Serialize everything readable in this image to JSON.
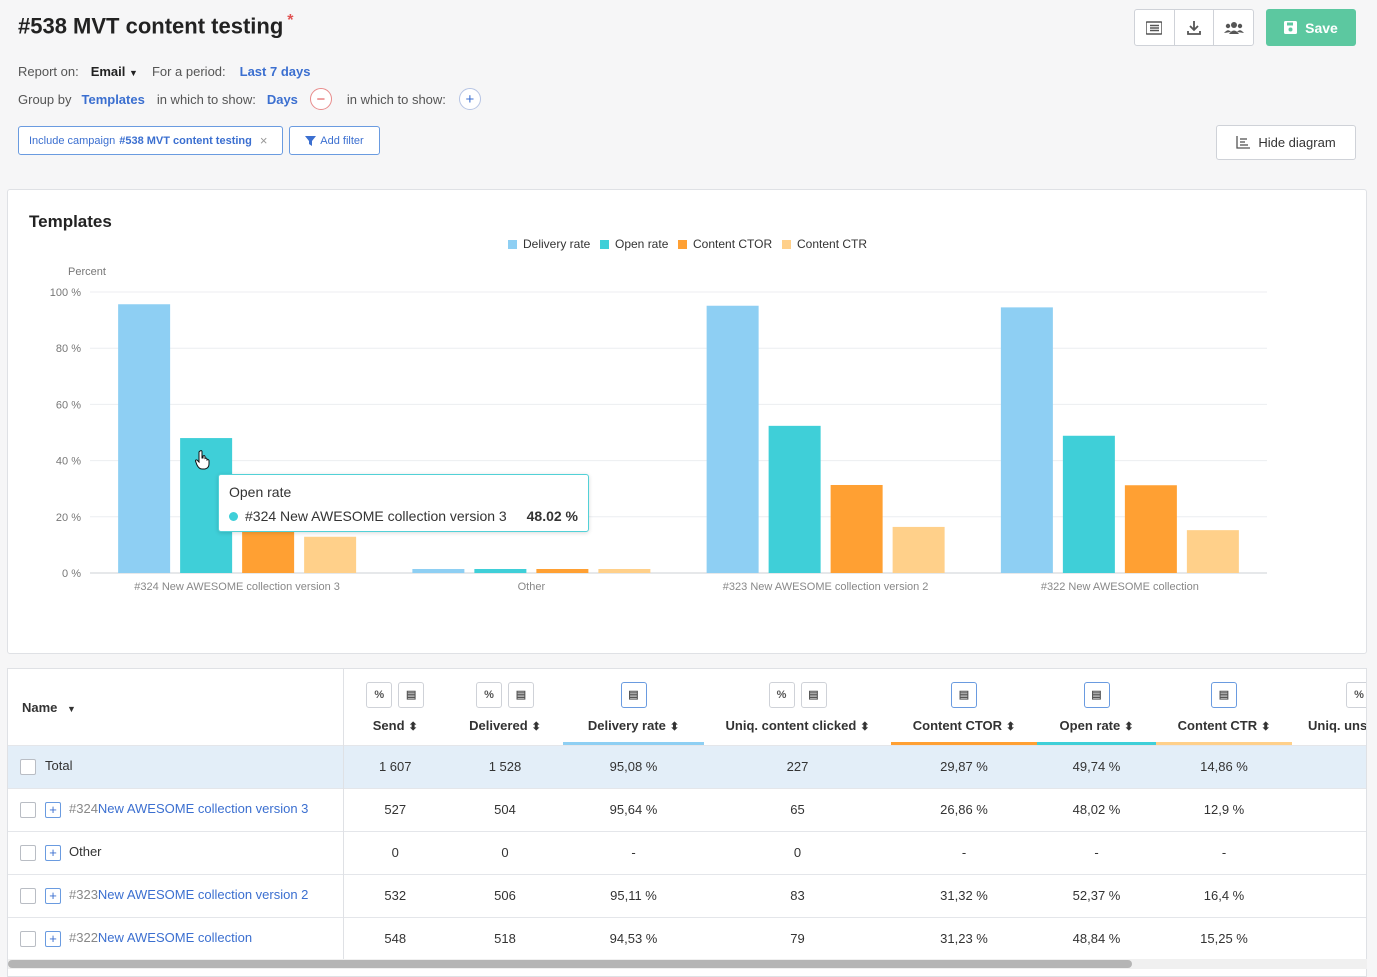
{
  "header": {
    "title": "#538 MVT content testing",
    "required_mark": "*",
    "save_label": "Save",
    "toolbar_icons": [
      "list-icon",
      "download-icon",
      "users-icon"
    ]
  },
  "filters": {
    "report_on_label": "Report on:",
    "report_on_value": "Email",
    "period_label": "For a period:",
    "period_value": "Last 7 days",
    "group_by_label": "Group by",
    "group_by_value": "Templates",
    "show_label": "in which to show:",
    "show_value": "Days",
    "show_label_2": "in which to show:",
    "chip_prefix": "Include campaign",
    "chip_value": "#538 MVT content testing",
    "add_filter_label": "Add filter",
    "hide_diagram_label": "Hide diagram"
  },
  "colors": {
    "delivery_rate": "#8ecff3",
    "open_rate": "#3fcfd8",
    "content_ctor": "#ffa033",
    "content_ctr": "#ffd08a",
    "accent": "#3b6fd0",
    "save": "#5cc8a0"
  },
  "chart_data": {
    "type": "bar",
    "title": "Templates",
    "ylabel": "Percent",
    "ylim": [
      0,
      100
    ],
    "yticks": [
      "0 %",
      "20 %",
      "40 %",
      "60 %",
      "80 %",
      "100 %"
    ],
    "legend_position": "top-center",
    "grid": true,
    "categories": [
      "#324 New AWESOME collection version 3",
      "Other",
      "#323 New AWESOME collection version 2",
      "#322 New AWESOME collection"
    ],
    "series": [
      {
        "name": "Delivery rate",
        "values": [
          95.64,
          0,
          95.11,
          94.53
        ]
      },
      {
        "name": "Open rate",
        "values": [
          48.02,
          0,
          52.37,
          48.84
        ]
      },
      {
        "name": "Content CTOR",
        "values": [
          26.86,
          0,
          31.32,
          31.23
        ]
      },
      {
        "name": "Content CTR",
        "values": [
          12.9,
          0,
          16.4,
          15.25
        ]
      }
    ],
    "tooltip": {
      "title": "Open rate",
      "label": "#324 New AWESOME collection version 3",
      "value": "48.02 %"
    }
  },
  "table": {
    "name_header": "Name",
    "columns": [
      "Send",
      "Delivered",
      "Delivery rate",
      "Uniq. content clicked",
      "Content CTOR",
      "Open rate",
      "Content CTR",
      "Uniq. unsu"
    ],
    "rows": [
      {
        "id": "",
        "name": "Total",
        "values": [
          "1 607",
          "1 528",
          "95,08 %",
          "227",
          "29,87 %",
          "49,74 %",
          "14,86 %"
        ]
      },
      {
        "id": "#324",
        "name": "New AWESOME collection version 3",
        "values": [
          "527",
          "504",
          "95,64 %",
          "65",
          "26,86 %",
          "48,02 %",
          "12,9 %"
        ]
      },
      {
        "id": "",
        "name": "Other",
        "values": [
          "0",
          "0",
          "-",
          "0",
          "-",
          "-",
          "-"
        ]
      },
      {
        "id": "#323",
        "name": "New AWESOME collection version 2",
        "values": [
          "532",
          "506",
          "95,11 %",
          "83",
          "31,32 %",
          "52,37 %",
          "16,4 %"
        ]
      },
      {
        "id": "#322",
        "name": "New AWESOME collection",
        "values": [
          "548",
          "518",
          "94,53 %",
          "79",
          "31,23 %",
          "48,84 %",
          "15,25 %"
        ]
      }
    ]
  }
}
